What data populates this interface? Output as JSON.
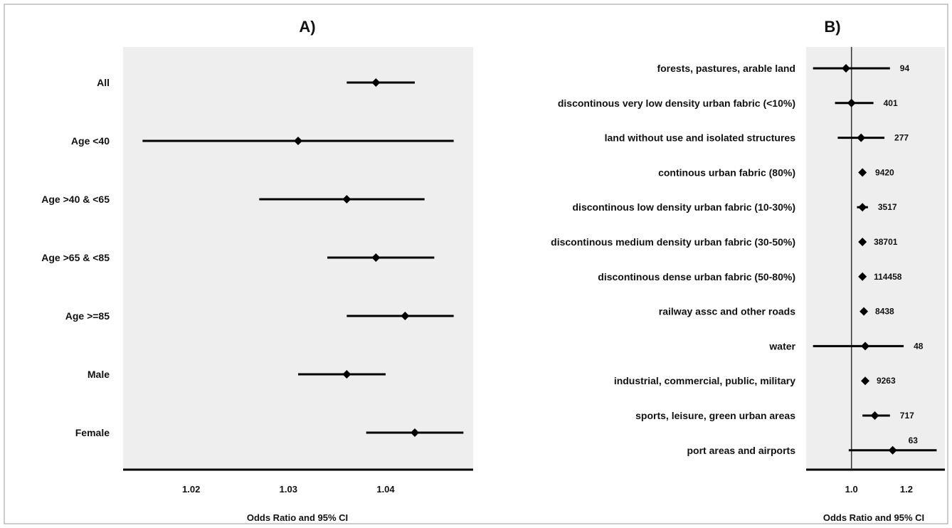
{
  "chart_data": [
    {
      "type": "scatter",
      "subtype": "forest-plot",
      "title": "A)",
      "xlabel": "Odds Ratio and 95% CI",
      "ylabel": "",
      "xlim": [
        1.013,
        1.049
      ],
      "xticks": [
        1.02,
        1.03,
        1.04
      ],
      "xtick_labels": [
        "1.02",
        "1.03",
        "1.04"
      ],
      "grid": false,
      "background": "#eeeeee",
      "categories": [
        "All",
        "Age <40",
        "Age >40 & <65",
        "Age >65 & <85",
        "Age >=85",
        "Male",
        "Female"
      ],
      "estimate": [
        1.039,
        1.031,
        1.036,
        1.039,
        1.042,
        1.036,
        1.043
      ],
      "ci_low": [
        1.036,
        1.015,
        1.027,
        1.034,
        1.036,
        1.031,
        1.038
      ],
      "ci_high": [
        1.043,
        1.047,
        1.044,
        1.045,
        1.047,
        1.04,
        1.048
      ]
    },
    {
      "type": "scatter",
      "subtype": "forest-plot",
      "title": "B)",
      "xlabel": "Odds Ratio and 95% CI",
      "ylabel": "",
      "xlim": [
        0.835,
        1.34
      ],
      "xticks": [
        1.0,
        1.2
      ],
      "xtick_labels": [
        "1.0",
        "1.2"
      ],
      "reference_line": 1.0,
      "grid": false,
      "background": "#eeeeee",
      "categories": [
        "forests, pastures, arable land",
        "discontinous very low density urban fabric (<10%)",
        "land without use and isolated structures",
        "continous urban fabric (80%)",
        "discontinous low density urban fabric (10-30%)",
        "discontinous medium density urban fabric (30-50%)",
        "discontinous dense urban fabric (50-80%)",
        "railway assc and other roads",
        "water",
        "industrial, commercial, public, military",
        "sports, leisure, green urban areas",
        "port areas and airports"
      ],
      "estimate": [
        0.98,
        1.0,
        1.035,
        1.04,
        1.04,
        1.04,
        1.04,
        1.045,
        1.05,
        1.05,
        1.085,
        1.15
      ],
      "ci_low": [
        0.86,
        0.94,
        0.95,
        1.03,
        1.02,
        1.035,
        1.035,
        1.04,
        0.86,
        1.045,
        1.04,
        0.99
      ],
      "ci_high": [
        1.14,
        1.08,
        1.12,
        1.05,
        1.06,
        1.045,
        1.045,
        1.05,
        1.19,
        1.055,
        1.14,
        1.31
      ],
      "n_labels": [
        "94",
        "401",
        "277",
        "9420",
        "3517",
        "38701",
        "114458",
        "8438",
        "48",
        "9263",
        "717",
        "63"
      ]
    }
  ]
}
